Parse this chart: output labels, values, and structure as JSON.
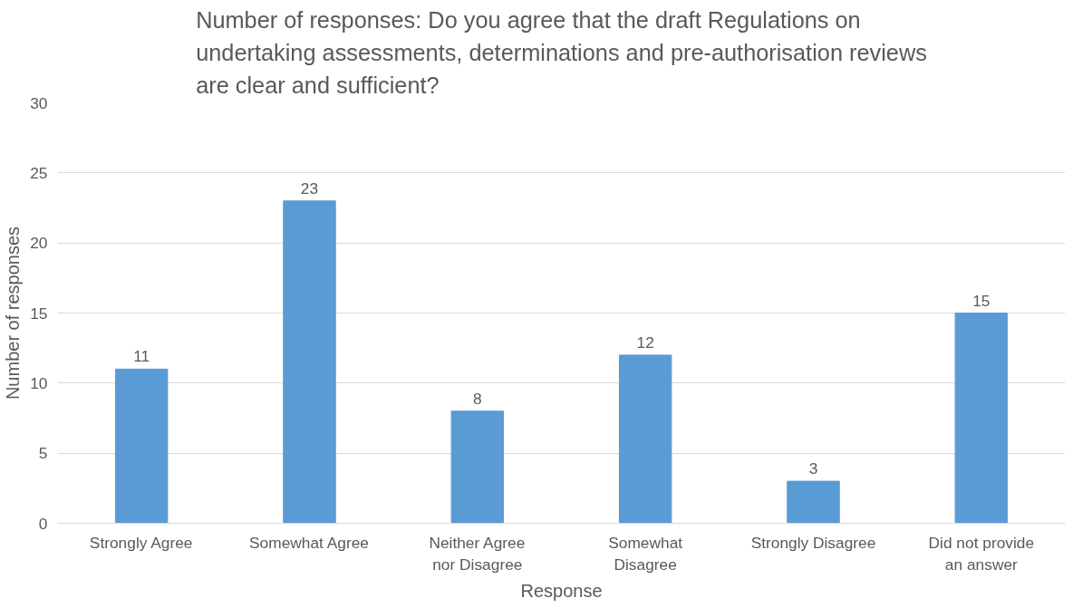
{
  "chart_data": {
    "type": "bar",
    "title": "Number of responses: Do you agree that the draft Regulations on undertaking assessments, determinations and pre-authorisation reviews are clear and sufficient?",
    "xlabel": "Response",
    "ylabel": "Number of responses",
    "categories": [
      "Strongly Agree",
      "Somewhat Agree",
      "Neither Agree\nnor Disagree",
      "Somewhat\nDisagree",
      "Strongly Disagree",
      "Did not provide\nan answer"
    ],
    "values": [
      11,
      23,
      8,
      12,
      3,
      15
    ],
    "color": "#5b9bd5",
    "ylim": [
      0,
      30
    ],
    "yticks": [
      0,
      5,
      10,
      15,
      20,
      25,
      30
    ],
    "grid": "y",
    "data_labels": true
  }
}
